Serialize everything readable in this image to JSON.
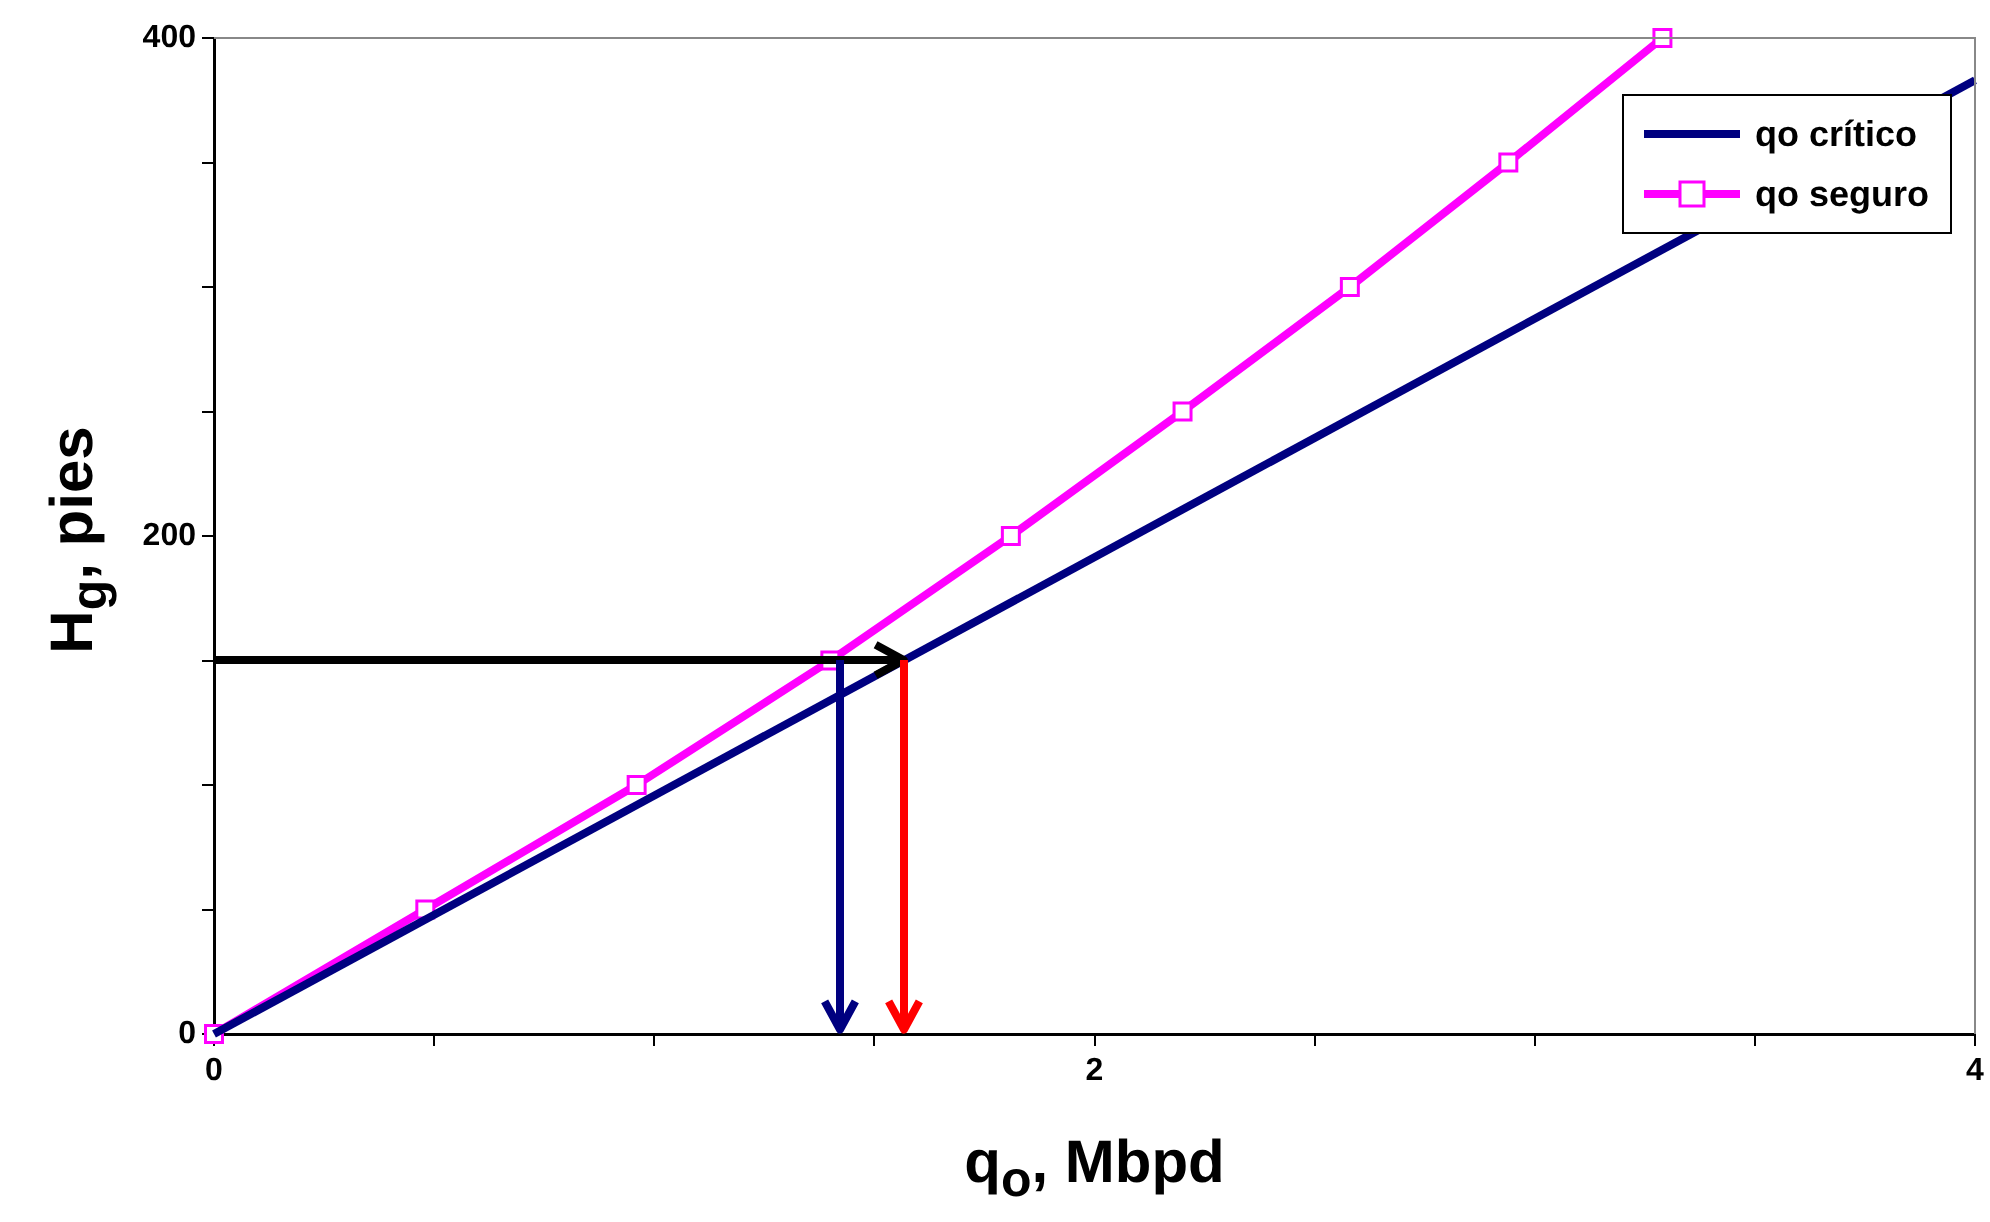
{
  "chart_data": {
    "type": "line",
    "xlabel": "q$_{o}$, Mbpd",
    "ylabel": "H$_{g}$, pies",
    "series": [
      {
        "name": "qo crítico",
        "color": "#000080",
        "marker": "none",
        "x": [
          0,
          4
        ],
        "values": [
          0,
          383
        ]
      },
      {
        "name": "qo seguro",
        "color": "#ff00ff",
        "marker": "square",
        "x": [
          0,
          0.48,
          0.96,
          1.4,
          1.81,
          2.2,
          2.58,
          2.94,
          3.29
        ],
        "values": [
          0,
          50,
          100,
          150,
          200,
          250,
          300,
          350,
          400
        ]
      }
    ],
    "xlim": [
      0,
      4
    ],
    "xticks": [
      0,
      {
        "value": 0.5,
        "label": null
      },
      {
        "value": 1,
        "label": null
      },
      {
        "value": 1.5,
        "label": null
      },
      2,
      {
        "value": 2.5,
        "label": null
      },
      {
        "value": 3,
        "label": null
      },
      {
        "value": 3.5,
        "label": null
      },
      4
    ],
    "ylim": [
      0,
      400
    ],
    "yticks": [
      0,
      {
        "value": 50,
        "label": null
      },
      {
        "value": 100,
        "label": null
      },
      {
        "value": 150,
        "label": null
      },
      200,
      {
        "value": 250,
        "label": null
      },
      {
        "value": 300,
        "label": null
      },
      {
        "value": 350,
        "label": null
      },
      400
    ],
    "legend": "top right",
    "grid": false
  }
}
